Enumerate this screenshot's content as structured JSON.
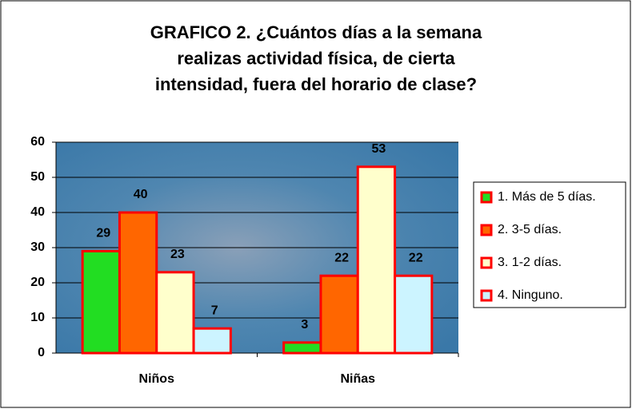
{
  "chart_data": {
    "type": "bar",
    "title": "GRAFICO 2. ¿Cuántos días a la semana realizas actividad física, de cierta intensidad, fuera del horario de clase?",
    "categories": [
      "Niños",
      "Niñas"
    ],
    "series": [
      {
        "name": "1. Más de 5 días.",
        "color": "#22dd22",
        "values": [
          29,
          3
        ]
      },
      {
        "name": "2. 3-5 días.",
        "color": "#ff6600",
        "values": [
          40,
          22
        ]
      },
      {
        "name": "3. 1-2 días.",
        "color": "#ffffcc",
        "values": [
          23,
          53
        ]
      },
      {
        "name": "4. Ninguno.",
        "color": "#ccf4ff",
        "values": [
          7,
          22
        ]
      }
    ],
    "ylim": [
      0,
      60
    ],
    "yticks": [
      0,
      10,
      20,
      30,
      40,
      50,
      60
    ],
    "grid": true,
    "legend": "right",
    "bar_edge_color": "#ff0000"
  }
}
